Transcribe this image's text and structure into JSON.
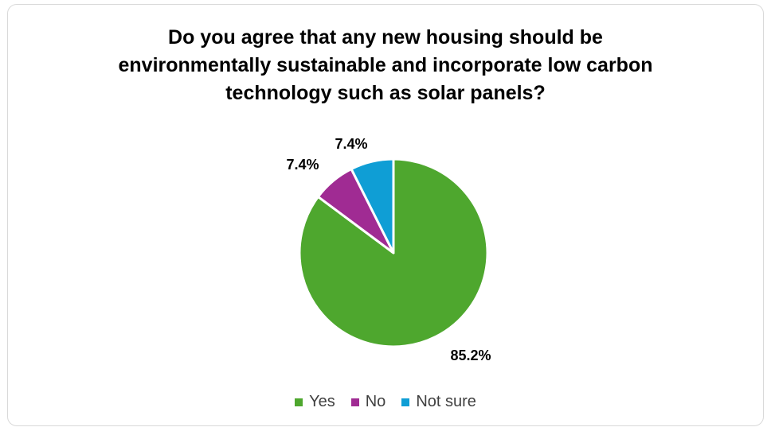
{
  "chart_data": {
    "type": "pie",
    "title": "Do you agree that any new housing should be environmentally sustainable and incorporate low carbon technology such as solar panels?",
    "categories": [
      "Yes",
      "No",
      "Not sure"
    ],
    "values": [
      85.2,
      7.4,
      7.4
    ],
    "data_labels": [
      "85.2%",
      "7.4%",
      "7.4%"
    ],
    "colors": [
      "#4ea72e",
      "#a02b93",
      "#0f9ed5"
    ],
    "legend_position": "bottom",
    "start_angle": "12 o'clock",
    "direction": "clockwise"
  }
}
